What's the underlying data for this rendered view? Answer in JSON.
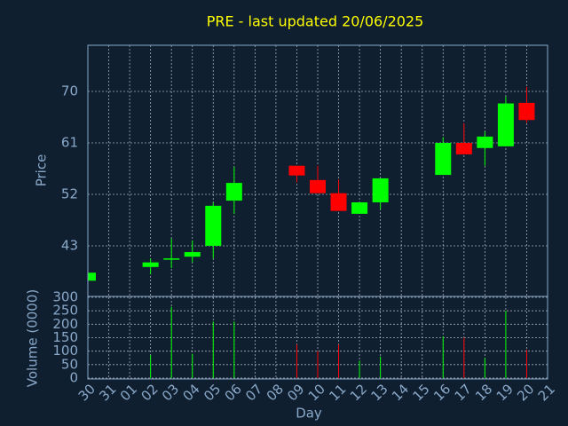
{
  "chart_data": {
    "type": "candlestick",
    "title": "PRE - last updated 20/06/2025",
    "x_label": "Day",
    "y_label": "Price",
    "y2_label": "Volume (0000)",
    "categories": [
      "30",
      "31",
      "01",
      "02",
      "03",
      "04",
      "05",
      "06",
      "07",
      "08",
      "09",
      "10",
      "11",
      "12",
      "13",
      "14",
      "15",
      "16",
      "17",
      "18",
      "19",
      "20",
      "21"
    ],
    "open": [
      36.9,
      null,
      null,
      39.3,
      40.6,
      41.1,
      43.0,
      50.9,
      null,
      null,
      57.0,
      54.5,
      52.2,
      48.6,
      50.6,
      null,
      null,
      55.4,
      61.0,
      60.1,
      60.4,
      68.0,
      null
    ],
    "high": [
      38.3,
      null,
      null,
      40.8,
      44.3,
      43.9,
      50.6,
      56.8,
      null,
      null,
      57.0,
      57.0,
      54.6,
      50.6,
      54.8,
      null,
      null,
      62.0,
      64.4,
      63.0,
      69.1,
      70.8,
      null
    ],
    "low": [
      36.9,
      null,
      null,
      38.0,
      39.1,
      40.1,
      40.8,
      48.6,
      null,
      null,
      54.1,
      52.2,
      49.1,
      48.6,
      49.4,
      null,
      null,
      55.4,
      59.0,
      57.0,
      60.4,
      64.5,
      null
    ],
    "close": [
      38.3,
      null,
      null,
      40.1,
      40.8,
      41.9,
      50.0,
      54.0,
      null,
      null,
      55.3,
      52.2,
      49.1,
      50.6,
      54.8,
      null,
      null,
      61.0,
      59.0,
      62.1,
      67.9,
      65.0,
      null
    ],
    "volume": [
      null,
      null,
      null,
      85,
      265,
      90,
      210,
      210,
      null,
      null,
      125,
      100,
      125,
      65,
      80,
      null,
      null,
      155,
      150,
      75,
      250,
      105,
      null
    ],
    "up_color": "#00ff00",
    "down_color": "#ff0000",
    "ylim": [
      34.15,
      78.07
    ],
    "yticks": [
      43,
      52,
      61,
      70
    ],
    "y2lim": [
      0,
      300
    ],
    "y2ticks": [
      0,
      50,
      100,
      150,
      200,
      250,
      300
    ],
    "grid": true
  }
}
